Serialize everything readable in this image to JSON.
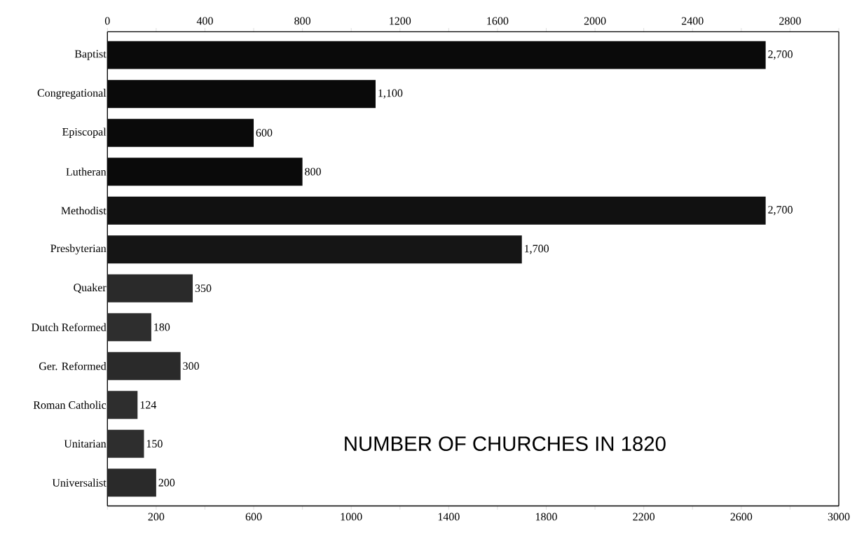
{
  "chart_data": {
    "type": "bar",
    "orientation": "horizontal",
    "title": "NUMBER OF CHURCHES IN 1820",
    "categories": [
      "Baptist",
      "Congregational",
      "Episcopal",
      "Lutheran",
      "Methodist",
      "Presbyterian",
      "Quaker",
      "Dutch Reformed",
      "Ger. Reformed",
      "Roman Catholic",
      "Unitarian",
      "Universalist"
    ],
    "values": [
      2700,
      1100,
      600,
      800,
      2700,
      1700,
      350,
      180,
      300,
      124,
      150,
      200
    ],
    "value_labels": [
      "2,700",
      "1,100",
      "600",
      "800",
      "2,700",
      "1,700",
      "350",
      "180",
      "300",
      "124",
      "150",
      "200"
    ],
    "colors": [
      "#0a0a0a",
      "#0a0a0a",
      "#0a0a0a",
      "#0a0a0a",
      "#111111",
      "#151515",
      "#2a2a2a",
      "#2e2e2e",
      "#2a2a2a",
      "#2e2e2e",
      "#2e2e2e",
      "#2a2a2a"
    ],
    "xlim": [
      0,
      3000
    ],
    "xticks": [
      {
        "value": 0,
        "label": null
      },
      200,
      {
        "value": 400,
        "label": null
      },
      600,
      {
        "value": 800,
        "label": null
      },
      1000,
      {
        "value": 1200,
        "label": null
      },
      1400,
      {
        "value": 1600,
        "label": null
      },
      1800,
      {
        "value": 2000,
        "label": null
      },
      2200,
      {
        "value": 2400,
        "label": null
      },
      2600,
      {
        "value": 2800,
        "label": null
      },
      3000
    ],
    "x2lim": [
      0,
      3000
    ],
    "x2ticks": [
      0,
      {
        "value": 200,
        "label": null
      },
      400,
      {
        "value": 600,
        "label": null
      },
      800,
      {
        "value": 1000,
        "label": null
      },
      1200,
      {
        "value": 1400,
        "label": null
      },
      1600,
      {
        "value": 1800,
        "label": null
      },
      2000,
      {
        "value": 2200,
        "label": null
      },
      2400,
      {
        "value": 2600,
        "label": null
      },
      2800,
      {
        "value": 3000,
        "label": null
      }
    ],
    "grid": false
  }
}
